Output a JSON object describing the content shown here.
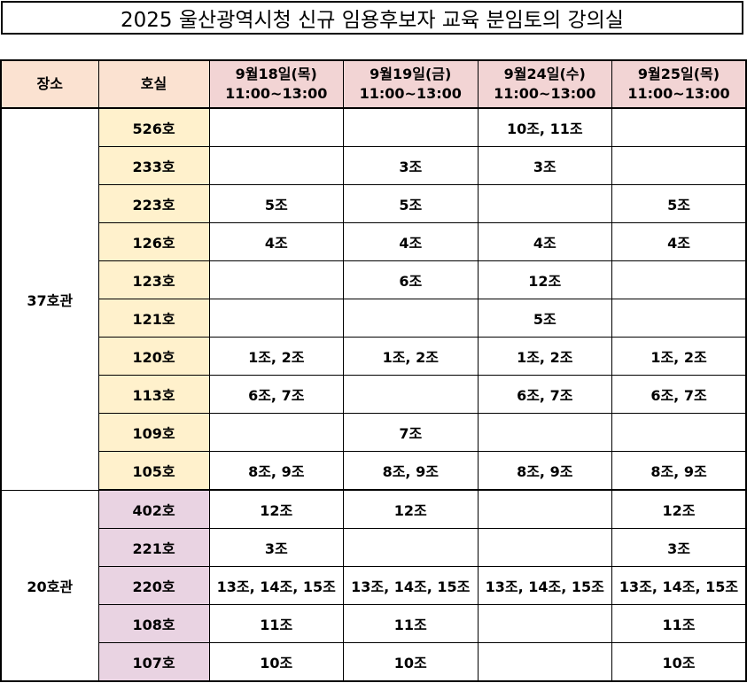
{
  "title": "2025 울산광역시청 신규 임용후보자 교육 분임토의 강의실",
  "headers": {
    "place": "장소",
    "room": "호실",
    "days": [
      {
        "date": "9월18일(목)",
        "time": "11:00~13:00"
      },
      {
        "date": "9월19일(금)",
        "time": "11:00~13:00"
      },
      {
        "date": "9월24일(수)",
        "time": "11:00~13:00"
      },
      {
        "date": "9월25일(목)",
        "time": "11:00~13:00"
      }
    ]
  },
  "groups": [
    {
      "building": "37호관",
      "rows": [
        {
          "room": "526호",
          "cells": [
            "",
            "",
            "10조, 11조",
            ""
          ]
        },
        {
          "room": "233호",
          "cells": [
            "",
            "3조",
            "3조",
            ""
          ]
        },
        {
          "room": "223호",
          "cells": [
            "5조",
            "5조",
            "",
            "5조"
          ]
        },
        {
          "room": "126호",
          "cells": [
            "4조",
            "4조",
            "4조",
            "4조"
          ]
        },
        {
          "room": "123호",
          "cells": [
            "",
            "6조",
            "12조",
            ""
          ]
        },
        {
          "room": "121호",
          "cells": [
            "",
            "",
            "5조",
            ""
          ]
        },
        {
          "room": "120호",
          "cells": [
            "1조, 2조",
            "1조, 2조",
            "1조, 2조",
            "1조, 2조"
          ]
        },
        {
          "room": "113호",
          "cells": [
            "6조, 7조",
            "",
            "6조, 7조",
            "6조, 7조"
          ]
        },
        {
          "room": "109호",
          "cells": [
            "",
            "7조",
            "",
            ""
          ]
        },
        {
          "room": "105호",
          "cells": [
            "8조, 9조",
            "8조, 9조",
            "8조, 9조",
            "8조, 9조"
          ]
        }
      ]
    },
    {
      "building": "20호관",
      "rows": [
        {
          "room": "402호",
          "cells": [
            "12조",
            "12조",
            "",
            "12조"
          ]
        },
        {
          "room": "221호",
          "cells": [
            "3조",
            "",
            "",
            "3조"
          ]
        },
        {
          "room": "220호",
          "cells": [
            "13조, 14조, 15조",
            "13조, 14조, 15조",
            "13조, 14조, 15조",
            "13조, 14조, 15조"
          ]
        },
        {
          "room": "108호",
          "cells": [
            "11조",
            "11조",
            "",
            "11조"
          ]
        },
        {
          "room": "107호",
          "cells": [
            "10조",
            "10조",
            "",
            "10조"
          ]
        }
      ]
    }
  ],
  "colors": {
    "day_header_bg": "#f2d4d4",
    "label_header_bg": "#fbe2d1",
    "room_37_bg": "#fff1cc",
    "room_20_bg": "#e9d3e2"
  }
}
